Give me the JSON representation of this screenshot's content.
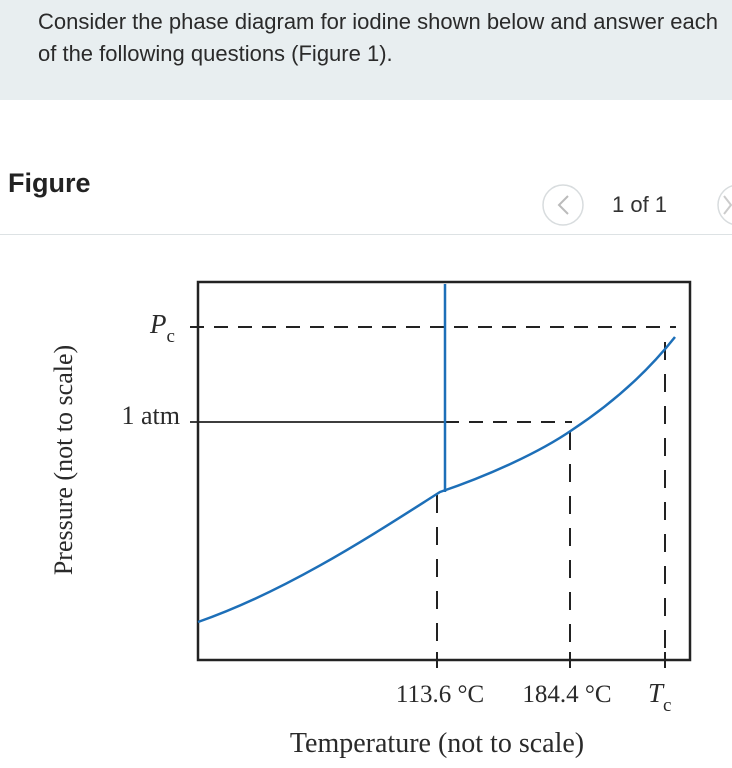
{
  "question": "Consider the phase diagram for iodine shown below and answer each of the following questions (Figure 1).",
  "figure_panel": {
    "title": "Figure",
    "pager": "1 of 1"
  },
  "diagram": {
    "y_axis_label": "Pressure (not to scale)",
    "x_axis_label": "Temperature (not to scale)",
    "pressure_labels": {
      "critical": {
        "symbol": "P",
        "subscript": "c"
      },
      "atm": "1 atm"
    },
    "temperature_labels": {
      "triple": "113.6 °C",
      "boiling": "184.4 °C",
      "critical": {
        "symbol": "T",
        "subscript": "c"
      }
    }
  }
}
